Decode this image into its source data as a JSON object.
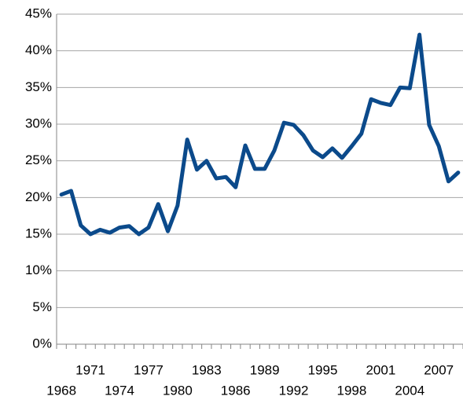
{
  "chart_data": {
    "type": "line",
    "categories": [
      "1968",
      null,
      null,
      "1971",
      null,
      null,
      "1974",
      null,
      null,
      "1977",
      null,
      null,
      "1980",
      null,
      null,
      "1983",
      null,
      null,
      "1986",
      null,
      null,
      "1989",
      null,
      null,
      "1992",
      null,
      null,
      "1995",
      null,
      null,
      "1998",
      null,
      null,
      "2001",
      null,
      null,
      "2004",
      null,
      null,
      "2007",
      null,
      null
    ],
    "series": [
      {
        "color": "#0b4a8b",
        "values": [
          20.4,
          20.9,
          16.2,
          15.0,
          15.6,
          15.2,
          15.9,
          16.1,
          15.0,
          15.9,
          19.1,
          15.4,
          18.9,
          27.9,
          23.8,
          25.0,
          22.6,
          22.8,
          21.4,
          27.1,
          23.9,
          23.9,
          26.4,
          30.2,
          29.9,
          28.5,
          26.4,
          25.5,
          26.7,
          25.4,
          27.0,
          28.7,
          33.4,
          32.9,
          32.6,
          35.0,
          34.9,
          42.2,
          29.9,
          27.0,
          22.2,
          23.4
        ]
      }
    ],
    "ylim": [
      0,
      45
    ],
    "yticks": [
      {
        "value": 0,
        "label": "0%"
      },
      {
        "value": 5,
        "label": "5%"
      },
      {
        "value": 10,
        "label": "10%"
      },
      {
        "value": 15,
        "label": "15%"
      },
      {
        "value": 20,
        "label": "20%"
      },
      {
        "value": 25,
        "label": "25%"
      },
      {
        "value": 30,
        "label": "30%"
      },
      {
        "value": 35,
        "label": "35%"
      },
      {
        "value": 40,
        "label": "40%"
      },
      {
        "value": 45,
        "label": "45%"
      }
    ],
    "grid": true
  }
}
